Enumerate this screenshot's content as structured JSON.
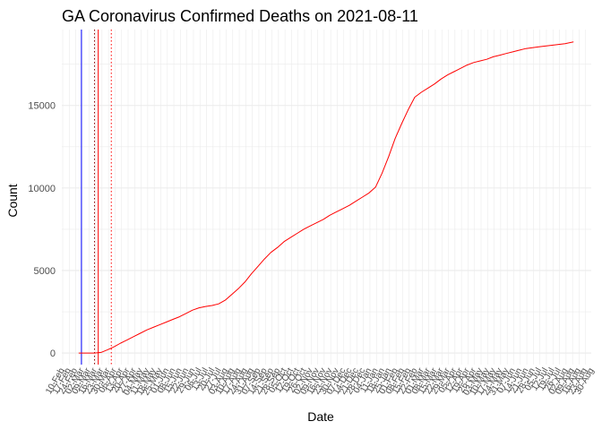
{
  "chart_data": {
    "type": "line",
    "title": "GA Coronavirus Confirmed Deaths on 2021-08-11",
    "xlabel": "Date",
    "ylabel": "Count",
    "xlim": [
      "2020-02-10",
      "2021-08-30"
    ],
    "ylim": [
      -700,
      19600
    ],
    "yticks": [
      0,
      5000,
      10000,
      15000
    ],
    "xtick_labels": [
      "10-Feb",
      "17-Feb",
      "24-Feb",
      "02-Mar",
      "09-Mar",
      "16-Mar",
      "23-Mar",
      "30-Mar",
      "06-Apr",
      "13-Apr",
      "20-Apr",
      "27-Apr",
      "04-May",
      "11-May",
      "18-May",
      "25-May",
      "01-Jun",
      "08-Jun",
      "15-Jun",
      "22-Jun",
      "29-Jun",
      "06-Jul",
      "13-Jul",
      "20-Jul",
      "27-Jul",
      "03-Aug",
      "10-Aug",
      "17-Aug",
      "24-Aug",
      "31-Aug",
      "07-Sep",
      "14-Sep",
      "21-Sep",
      "28-Sep",
      "05-Oct",
      "12-Oct",
      "19-Oct",
      "26-Oct",
      "02-Nov",
      "09-Nov",
      "16-Nov",
      "23-Nov",
      "30-Nov",
      "07-Dec",
      "14-Dec",
      "21-Dec",
      "28-Dec",
      "04-Jan",
      "11-Jan",
      "18-Jan",
      "25-Jan",
      "01-Feb",
      "08-Feb",
      "15-Feb",
      "22-Feb",
      "01-Mar",
      "08-Mar",
      "15-Mar",
      "22-Mar",
      "29-Mar",
      "05-Apr",
      "12-Apr",
      "19-Apr",
      "26-Apr",
      "03-May",
      "10-May",
      "17-May",
      "24-May",
      "31-May",
      "07-Jun",
      "14-Jun",
      "21-Jun",
      "28-Jun",
      "05-Jul",
      "12-Jul",
      "19-Jul",
      "26-Jul",
      "02-Aug",
      "09-Aug",
      "16-Aug",
      "23-Aug",
      "30-Aug"
    ],
    "grid": true,
    "series": [
      {
        "color": "#ff0000",
        "x": [
          "2020-02-28",
          "2020-03-16",
          "2020-03-23",
          "2020-03-30",
          "2020-04-06",
          "2020-04-13",
          "2020-04-20",
          "2020-04-27",
          "2020-05-04",
          "2020-05-11",
          "2020-05-18",
          "2020-05-25",
          "2020-06-01",
          "2020-06-08",
          "2020-06-15",
          "2020-06-22",
          "2020-06-29",
          "2020-07-06",
          "2020-07-13",
          "2020-07-20",
          "2020-07-27",
          "2020-08-03",
          "2020-08-10",
          "2020-08-17",
          "2020-08-24",
          "2020-08-31",
          "2020-09-07",
          "2020-09-14",
          "2020-09-21",
          "2020-09-28",
          "2020-10-05",
          "2020-10-12",
          "2020-10-19",
          "2020-10-26",
          "2020-11-02",
          "2020-11-09",
          "2020-11-16",
          "2020-11-23",
          "2020-11-30",
          "2020-12-07",
          "2020-12-14",
          "2020-12-21",
          "2020-12-28",
          "2021-01-04",
          "2021-01-11",
          "2021-01-18",
          "2021-01-25",
          "2021-02-01",
          "2021-02-08",
          "2021-02-15",
          "2021-02-22",
          "2021-03-01",
          "2021-03-08",
          "2021-03-15",
          "2021-03-22",
          "2021-03-29",
          "2021-04-05",
          "2021-04-12",
          "2021-04-19",
          "2021-04-26",
          "2021-05-03",
          "2021-05-10",
          "2021-05-17",
          "2021-05-24",
          "2021-05-31",
          "2021-06-07",
          "2021-06-14",
          "2021-06-21",
          "2021-06-28",
          "2021-07-05",
          "2021-07-12",
          "2021-07-19",
          "2021-07-26",
          "2021-08-02",
          "2021-08-11"
        ],
        "y": [
          0,
          0,
          40,
          200,
          380,
          600,
          800,
          1000,
          1200,
          1400,
          1560,
          1720,
          1880,
          2040,
          2200,
          2400,
          2600,
          2740,
          2820,
          2880,
          2980,
          3200,
          3550,
          3900,
          4300,
          4800,
          5250,
          5700,
          6100,
          6400,
          6750,
          7000,
          7250,
          7500,
          7700,
          7900,
          8100,
          8350,
          8550,
          8750,
          8950,
          9200,
          9450,
          9700,
          10050,
          10900,
          11900,
          13000,
          13900,
          14750,
          15500,
          15800,
          16050,
          16300,
          16600,
          16850,
          17050,
          17250,
          17450,
          17600,
          17700,
          17800,
          17950,
          18050,
          18150,
          18250,
          18350,
          18450,
          18500,
          18550,
          18600,
          18650,
          18700,
          18750,
          18850
        ]
      }
    ],
    "vlines": [
      {
        "date": "2020-03-02",
        "color": "#0000ff",
        "style": "solid"
      },
      {
        "date": "2020-03-16",
        "color": "#8b0000",
        "style": "dotted"
      },
      {
        "date": "2020-03-20",
        "color": "#ff0000",
        "style": "solid"
      },
      {
        "date": "2020-04-03",
        "color": "#ff0000",
        "style": "dotted"
      }
    ]
  }
}
